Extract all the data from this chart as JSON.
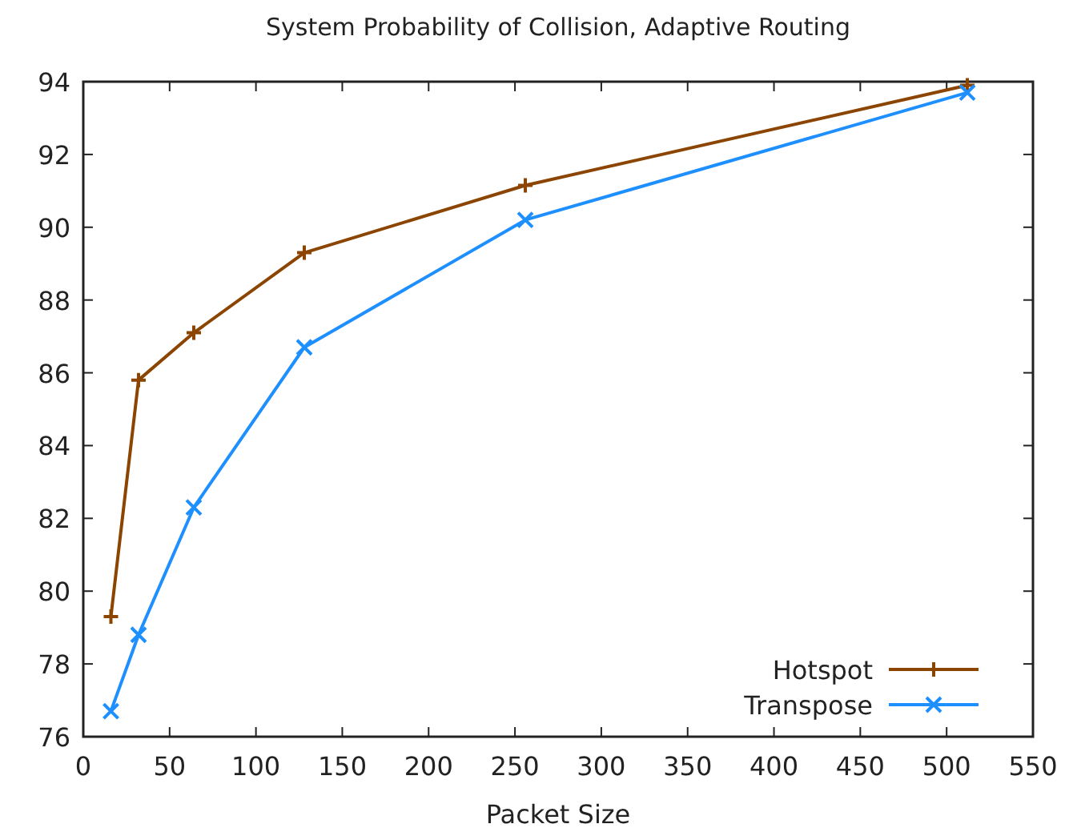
{
  "chart_data": {
    "type": "line",
    "title": "System Probability of Collision, Adaptive Routing",
    "xlabel": "Packet Size",
    "x": [
      16,
      32,
      64,
      128,
      256,
      512
    ],
    "series": [
      {
        "name": "Hotspot",
        "color": "#8b4500",
        "marker": "cross",
        "values": [
          79.3,
          85.8,
          87.1,
          89.3,
          91.15,
          93.9
        ]
      },
      {
        "name": "Transpose",
        "color": "#1e8fff",
        "marker": "x",
        "values": [
          76.7,
          78.8,
          82.3,
          86.7,
          90.2,
          93.7
        ]
      }
    ],
    "xlim": [
      0,
      550
    ],
    "xticks": [
      0,
      50,
      100,
      150,
      200,
      250,
      300,
      350,
      400,
      450,
      500,
      550
    ],
    "ylim": [
      76,
      94
    ],
    "yticks": [
      76,
      78,
      80,
      82,
      84,
      86,
      88,
      90,
      92,
      94
    ],
    "grid": false,
    "legend": "bottom right",
    "line_style": "solid"
  }
}
